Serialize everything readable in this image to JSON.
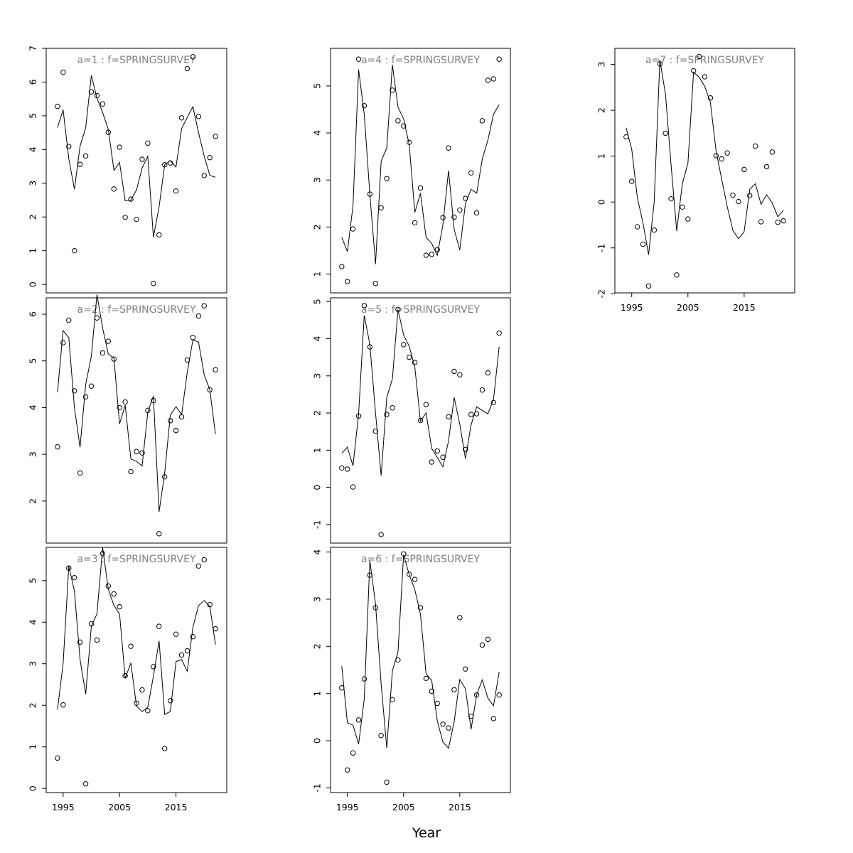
{
  "xlabel": "Year",
  "years_x_start": 1994,
  "colors": {
    "axes": "#000000",
    "line": "#000000",
    "points": "#000000",
    "title": "#808080"
  },
  "chart_data": [
    {
      "type": "line+scatter",
      "title": "a=1  :  f=SPRINGSURVEY",
      "ylim": [
        -0.25,
        7.0
      ],
      "yticks": [
        0,
        1,
        2,
        3,
        4,
        5,
        6,
        7
      ],
      "xlim": [
        1992,
        2024
      ],
      "xticks": [],
      "observed": [
        5.28,
        6.29,
        4.09,
        1.0,
        3.56,
        3.81,
        5.71,
        5.6,
        5.35,
        4.51,
        2.83,
        4.07,
        1.99,
        2.53,
        1.93,
        3.71,
        4.19,
        0.03,
        1.47,
        3.55,
        3.6,
        2.77,
        4.94,
        6.4,
        6.75,
        4.98,
        3.23,
        3.76,
        4.39
      ],
      "fitted": [
        4.65,
        5.18,
        3.72,
        2.82,
        4.1,
        4.65,
        6.2,
        5.52,
        5.1,
        4.6,
        3.38,
        3.62,
        2.48,
        2.5,
        2.8,
        3.45,
        3.8,
        1.4,
        2.3,
        3.55,
        3.67,
        3.48,
        4.62,
        4.95,
        5.27,
        4.5,
        3.8,
        3.23,
        3.18
      ]
    },
    {
      "type": "line+scatter",
      "title": "a=2  :  f=SPRINGSURVEY",
      "ylim": [
        1.1,
        6.35
      ],
      "yticks": [
        2,
        3,
        4,
        5,
        6
      ],
      "xlim": [
        1992,
        2024
      ],
      "xticks": [],
      "observed": [
        3.16,
        5.39,
        5.87,
        4.36,
        2.6,
        4.23,
        4.46,
        5.92,
        5.17,
        5.42,
        5.04,
        4.0,
        4.12,
        2.63,
        3.06,
        3.03,
        3.94,
        4.15,
        1.3,
        2.52,
        3.72,
        3.51,
        3.8,
        5.02,
        5.5,
        5.96,
        6.18,
        4.38,
        4.81
      ],
      "fitted": [
        4.33,
        5.65,
        5.5,
        4.0,
        3.15,
        4.5,
        5.1,
        6.42,
        5.7,
        5.15,
        5.05,
        3.65,
        4.05,
        2.9,
        2.85,
        2.75,
        3.9,
        4.25,
        1.77,
        2.6,
        3.84,
        4.02,
        3.85,
        4.75,
        5.45,
        5.4,
        4.7,
        4.38,
        3.43
      ]
    },
    {
      "type": "line+scatter",
      "title": "a=3  :  f=SPRINGSURVEY",
      "ylim": [
        -0.1,
        5.8
      ],
      "yticks": [
        0,
        1,
        2,
        3,
        4,
        5
      ],
      "xlim": [
        1992,
        2024
      ],
      "xticks": [
        1995,
        2005,
        2015
      ],
      "observed": [
        0.73,
        2.01,
        5.3,
        5.07,
        3.52,
        0.11,
        3.96,
        3.57,
        5.65,
        4.87,
        4.68,
        4.37,
        2.71,
        3.42,
        2.05,
        2.37,
        1.87,
        2.93,
        3.9,
        0.96,
        2.11,
        3.71,
        3.21,
        3.31,
        3.65,
        5.35,
        5.5,
        4.42,
        3.84
      ],
      "fitted": [
        1.9,
        3.0,
        5.35,
        4.75,
        3.1,
        2.27,
        3.9,
        4.2,
        5.8,
        4.8,
        4.4,
        4.2,
        2.65,
        3.02,
        1.98,
        1.85,
        1.95,
        2.7,
        3.55,
        1.78,
        1.85,
        3.05,
        3.1,
        2.82,
        3.88,
        4.4,
        4.52,
        4.38,
        3.46
      ]
    },
    {
      "type": "line+scatter",
      "title": "a=4  :  f=SPRINGSURVEY",
      "ylim": [
        0.6,
        5.8
      ],
      "yticks": [
        1,
        2,
        3,
        4,
        5
      ],
      "xlim": [
        1992,
        2024
      ],
      "xticks": [],
      "observed": [
        1.16,
        0.84,
        1.96,
        5.57,
        4.58,
        2.7,
        0.8,
        2.41,
        3.03,
        4.91,
        4.26,
        4.15,
        3.8,
        2.09,
        2.83,
        1.4,
        1.42,
        1.52,
        2.2,
        3.68,
        2.21,
        2.36,
        2.61,
        3.15,
        2.3,
        4.26,
        5.12,
        5.15,
        5.57
      ],
      "fitted": [
        1.78,
        1.48,
        2.45,
        5.35,
        4.4,
        2.7,
        1.21,
        3.4,
        3.68,
        5.45,
        4.55,
        4.3,
        3.75,
        2.31,
        2.72,
        1.78,
        1.65,
        1.4,
        2.05,
        3.2,
        1.95,
        1.51,
        2.5,
        2.8,
        2.72,
        3.45,
        3.85,
        4.4,
        4.6
      ]
    },
    {
      "type": "line+scatter",
      "title": "a=5  :  f=SPRINGSURVEY",
      "ylim": [
        -1.5,
        5.1
      ],
      "yticks": [
        -1,
        0,
        1,
        2,
        3,
        4,
        5
      ],
      "xlim": [
        1992,
        2024
      ],
      "xticks": [],
      "observed": [
        0.52,
        0.49,
        0.01,
        1.92,
        4.89,
        3.78,
        1.51,
        -1.27,
        1.96,
        2.14,
        4.79,
        3.84,
        3.5,
        3.36,
        1.8,
        2.23,
        0.68,
        0.98,
        0.81,
        1.9,
        3.12,
        3.03,
        1.02,
        1.96,
        1.98,
        2.62,
        3.08,
        2.28,
        4.15
      ],
      "fitted": [
        0.92,
        1.08,
        0.58,
        1.98,
        4.63,
        3.85,
        2.0,
        0.32,
        2.42,
        2.92,
        4.78,
        4.1,
        3.8,
        3.23,
        1.78,
        2.0,
        1.05,
        0.8,
        0.55,
        1.25,
        2.42,
        1.7,
        0.77,
        1.68,
        2.17,
        2.07,
        1.98,
        2.37,
        3.78
      ]
    },
    {
      "type": "line+scatter",
      "title": "a=6  :  f=SPRINGSURVEY",
      "ylim": [
        -1.1,
        4.1
      ],
      "yticks": [
        -1,
        0,
        1,
        2,
        3,
        4
      ],
      "xlim": [
        1992,
        2024
      ],
      "xticks": [
        1995,
        2005,
        2015
      ],
      "observed": [
        1.12,
        -0.62,
        -0.26,
        0.44,
        1.31,
        3.51,
        2.82,
        0.11,
        -0.88,
        0.87,
        1.71,
        3.96,
        3.53,
        3.42,
        2.82,
        1.32,
        1.05,
        0.79,
        0.35,
        0.27,
        1.08,
        2.61,
        1.52,
        0.52,
        0.97,
        2.03,
        2.15,
        0.47,
        0.97
      ],
      "fitted": [
        1.58,
        0.38,
        0.33,
        -0.07,
        0.88,
        3.82,
        2.9,
        1.2,
        -0.15,
        1.48,
        1.88,
        3.94,
        3.52,
        3.2,
        2.68,
        1.42,
        1.28,
        0.42,
        -0.03,
        -0.16,
        0.4,
        1.3,
        1.1,
        0.24,
        0.98,
        1.29,
        0.9,
        0.74,
        1.46
      ]
    },
    {
      "type": "line+scatter",
      "title": "a=7  :  f=SPRINGSURVEY",
      "ylim": [
        -1.98,
        3.35
      ],
      "yticks": [
        -2,
        -1,
        0,
        1,
        2,
        3
      ],
      "xlim": [
        1992,
        2024
      ],
      "xticks": [
        1995,
        2005,
        2015
      ],
      "observed": [
        1.42,
        0.45,
        -0.54,
        -0.92,
        -1.83,
        -0.61,
        3.01,
        1.5,
        0.07,
        -1.59,
        -0.11,
        -0.37,
        2.86,
        3.17,
        2.73,
        2.27,
        1.01,
        0.94,
        1.07,
        0.15,
        0.01,
        0.71,
        0.14,
        1.22,
        -0.43,
        0.77,
        1.09,
        -0.44,
        -0.41
      ],
      "fitted": [
        1.62,
        1.15,
        0.1,
        -0.45,
        -1.15,
        0.0,
        3.1,
        2.35,
        0.8,
        -0.63,
        0.4,
        0.85,
        2.83,
        2.72,
        2.52,
        2.17,
        1.12,
        0.5,
        -0.1,
        -0.62,
        -0.8,
        -0.65,
        0.28,
        0.4,
        -0.05,
        0.16,
        -0.02,
        -0.32,
        -0.18
      ]
    }
  ]
}
